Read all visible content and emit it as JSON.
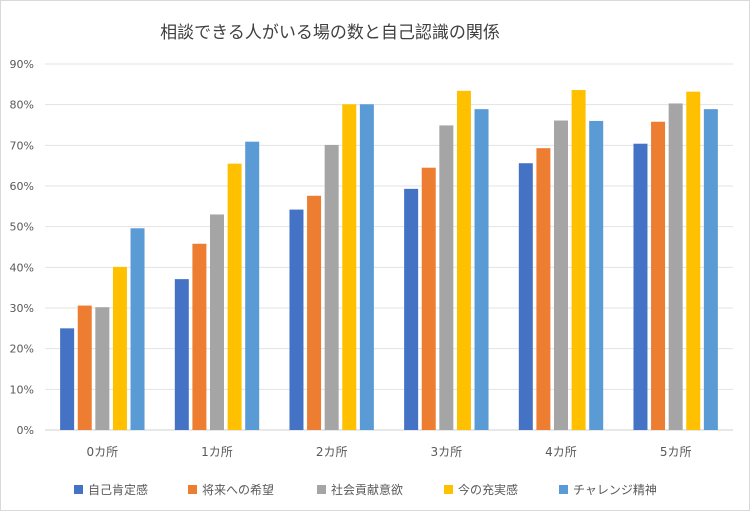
{
  "chart_data": {
    "type": "bar",
    "title": "相談できる人がいる場の数と自己認識の関係",
    "xlabel": "",
    "ylabel": "",
    "categories": [
      "0カ所",
      "1カ所",
      "2カ所",
      "3カ所",
      "4カ所",
      "5カ所"
    ],
    "ylim": [
      0,
      90
    ],
    "yticks": [
      "0%",
      "10%",
      "20%",
      "30%",
      "40%",
      "50%",
      "60%",
      "70%",
      "80%",
      "90%"
    ],
    "grid": true,
    "legend_position": "bottom",
    "series": [
      {
        "name": "自己肯定感",
        "color": "#4472C4",
        "values": [
          25.0,
          37.1,
          54.2,
          59.3,
          65.6,
          70.4
        ]
      },
      {
        "name": "将来への希望",
        "color": "#ED7D31",
        "values": [
          30.6,
          45.8,
          57.6,
          64.5,
          69.3,
          75.8
        ]
      },
      {
        "name": "社会貢献意欲",
        "color": "#A5A5A5",
        "values": [
          30.2,
          53.0,
          70.1,
          74.9,
          76.1,
          80.3
        ]
      },
      {
        "name": "今の充実感",
        "color": "#FFC000",
        "values": [
          40.1,
          65.5,
          80.1,
          83.4,
          83.6,
          83.2
        ]
      },
      {
        "name": "チャレンジ精神",
        "color": "#5B9BD5",
        "values": [
          49.6,
          70.9,
          80.1,
          78.9,
          76.0,
          78.9
        ]
      }
    ]
  }
}
